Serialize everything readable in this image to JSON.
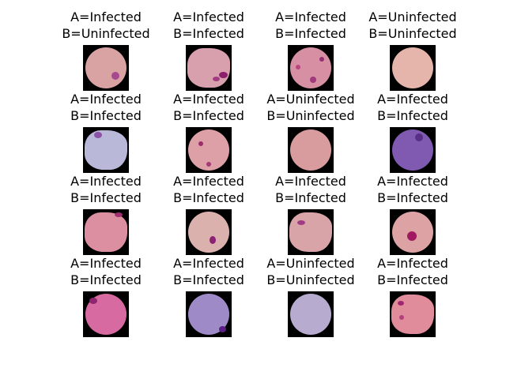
{
  "figure": {
    "columns": 4,
    "panels": [
      {
        "a": "A=Infected",
        "b": "B=Uninfected",
        "cell_color": "#d9a3a3",
        "shape": "round",
        "spots": [
          {
            "c": "#a8488f"
          }
        ]
      },
      {
        "a": "A=Infected",
        "b": "B=Infected",
        "cell_color": "#d8a0ad",
        "shape": "irregular",
        "spots": [
          {
            "c": "#8b1f6e"
          },
          {
            "c": "#a23b80"
          }
        ]
      },
      {
        "a": "A=Infected",
        "b": "B=Infected",
        "cell_color": "#d68fa3",
        "shape": "round",
        "spots": [
          {
            "c": "#a03a7a"
          },
          {
            "c": "#b8457f"
          },
          {
            "c": "#962f72"
          }
        ]
      },
      {
        "a": "A=Uninfected",
        "b": "B=Uninfected",
        "cell_color": "#e5b5ab",
        "shape": "round",
        "spots": []
      },
      {
        "a": "A=Infected",
        "b": "B=Infected",
        "cell_color": "#b9b8d9",
        "shape": "irregular",
        "spots": [
          {
            "c": "#8d52a6"
          }
        ]
      },
      {
        "a": "A=Infected",
        "b": "B=Infected",
        "cell_color": "#dca0a6",
        "shape": "round",
        "spots": [
          {
            "c": "#9c2d6a"
          },
          {
            "c": "#a5397a"
          }
        ]
      },
      {
        "a": "A=Uninfected",
        "b": "B=Uninfected",
        "cell_color": "#d99c9e",
        "shape": "round",
        "spots": []
      },
      {
        "a": "A=Infected",
        "b": "B=Infected",
        "cell_color": "#7f5ab0",
        "shape": "round",
        "spots": [
          {
            "c": "#5a2d86"
          }
        ]
      },
      {
        "a": "A=Infected",
        "b": "B=Infected",
        "cell_color": "#dc8fa0",
        "shape": "irregular",
        "spots": [
          {
            "c": "#a02f72"
          }
        ]
      },
      {
        "a": "A=Infected",
        "b": "B=Infected",
        "cell_color": "#dbb1ad",
        "shape": "round",
        "spots": [
          {
            "c": "#8b2273"
          }
        ]
      },
      {
        "a": "A=Infected",
        "b": "B=Infected",
        "cell_color": "#d9a4a8",
        "shape": "irregular",
        "spots": [
          {
            "c": "#a23b86"
          }
        ]
      },
      {
        "a": "A=Infected",
        "b": "B=Infected",
        "cell_color": "#dda2a3",
        "shape": "round",
        "spots": [
          {
            "c": "#a01a62"
          }
        ]
      },
      {
        "a": "A=Infected",
        "b": "B=Infected",
        "cell_color": "#d66aa1",
        "shape": "round",
        "spots": [
          {
            "c": "#8f2470"
          }
        ]
      },
      {
        "a": "A=Infected",
        "b": "B=Infected",
        "cell_color": "#9f8ac8",
        "shape": "round",
        "spots": [
          {
            "c": "#5b1e85"
          }
        ]
      },
      {
        "a": "A=Uninfected",
        "b": "B=Uninfected",
        "cell_color": "#b7acd0",
        "shape": "round",
        "spots": []
      },
      {
        "a": "A=Infected",
        "b": "B=Infected",
        "cell_color": "#e08c9a",
        "shape": "irregular",
        "spots": [
          {
            "c": "#a2266f"
          },
          {
            "c": "#b3407e"
          }
        ]
      }
    ]
  }
}
